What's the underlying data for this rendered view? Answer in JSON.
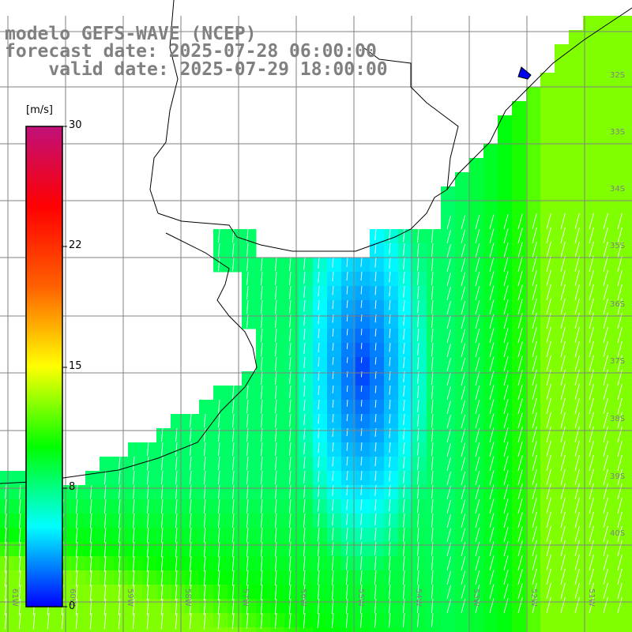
{
  "title": {
    "line1": "modelo GEFS-WAVE (NCEP)",
    "line2": "forecast date: 2025-07-28 06:00:00",
    "line3": "valid date: 2025-07-29 18:00:00"
  },
  "colorbar": {
    "unit": "[m/s]",
    "ticks": [
      "30",
      "22",
      "15",
      "8",
      "0"
    ],
    "min": 0,
    "max": 30,
    "colors": [
      "#0000ff",
      "#00ffff",
      "#00ff00",
      "#ffff00",
      "#ff6000",
      "#ff0000",
      "#c0107a"
    ]
  },
  "grid": {
    "lon_labels": [
      "61W",
      "60W",
      "59W",
      "58W",
      "57W",
      "56W",
      "55W",
      "54W",
      "53W",
      "52W",
      "51W"
    ],
    "lat_labels": [
      "32S",
      "33S",
      "34S",
      "35S",
      "36S",
      "37S",
      "38S",
      "39S",
      "40S"
    ]
  },
  "colors": {
    "land": "#ffffff",
    "grid_line": "#808080",
    "coast": "#000000",
    "arrow": "#ffffff"
  }
}
